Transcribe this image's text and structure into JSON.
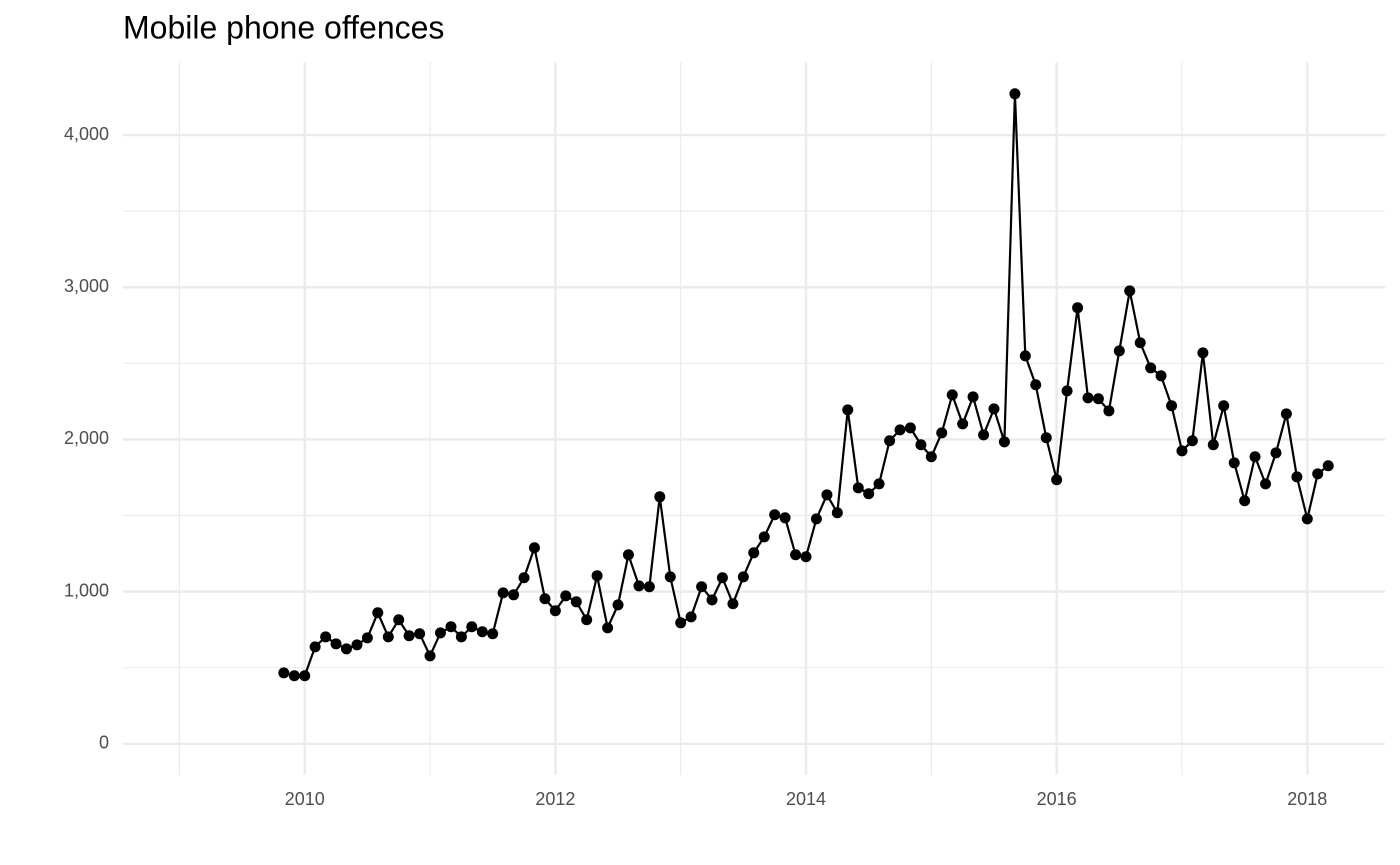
{
  "chart_data": {
    "type": "line",
    "title": "Mobile phone offences",
    "x": [
      2009.833,
      2009.917,
      2010,
      2010.083,
      2010.167,
      2010.25,
      2010.333,
      2010.417,
      2010.5,
      2010.583,
      2010.667,
      2010.75,
      2010.833,
      2010.917,
      2011,
      2011.083,
      2011.167,
      2011.25,
      2011.333,
      2011.417,
      2011.5,
      2011.583,
      2011.667,
      2011.75,
      2011.833,
      2011.917,
      2012,
      2012.083,
      2012.167,
      2012.25,
      2012.333,
      2012.417,
      2012.5,
      2012.583,
      2012.667,
      2012.75,
      2012.833,
      2012.917,
      2013,
      2013.083,
      2013.167,
      2013.25,
      2013.333,
      2013.417,
      2013.5,
      2013.583,
      2013.667,
      2013.75,
      2013.833,
      2013.917,
      2014,
      2014.083,
      2014.167,
      2014.25,
      2014.333,
      2014.417,
      2014.5,
      2014.583,
      2014.667,
      2014.75,
      2014.833,
      2014.917,
      2015,
      2015.083,
      2015.167,
      2015.25,
      2015.333,
      2015.417,
      2015.5,
      2015.583,
      2015.667,
      2015.75,
      2015.833,
      2015.917,
      2016,
      2016.083,
      2016.167,
      2016.25,
      2016.333,
      2016.417,
      2016.5,
      2016.583,
      2016.667,
      2016.75,
      2016.833,
      2016.917,
      2017,
      2017.083,
      2017.167,
      2017.25,
      2017.333,
      2017.417,
      2017.5,
      2017.583,
      2017.667,
      2017.75,
      2017.833,
      2017.917,
      2018,
      2018.083,
      2018.167
    ],
    "values": [
      466,
      447,
      447,
      637,
      703,
      657,
      624,
      650,
      696,
      861,
      703,
      815,
      710,
      723,
      578,
      729,
      769,
      703,
      769,
      736,
      723,
      992,
      979,
      1091,
      1288,
      953,
      874,
      972,
      933,
      815,
      1104,
      762,
      913,
      1242,
      1038,
      1032,
      1623,
      1097,
      795,
      834,
      1032,
      946,
      1091,
      920,
      1097,
      1255,
      1360,
      1505,
      1485,
      1242,
      1229,
      1478,
      1636,
      1518,
      2194,
      1682,
      1643,
      1708,
      1991,
      2063,
      2076,
      1965,
      1886,
      2043,
      2293,
      2102,
      2280,
      2030,
      2201,
      1984,
      4271,
      2549,
      2359,
      2011,
      1735,
      2319,
      2865,
      2273,
      2267,
      2188,
      2582,
      2976,
      2635,
      2470,
      2418,
      2221,
      1925,
      1991,
      2569,
      1965,
      2221,
      1846,
      1597,
      1886,
      1708,
      1912,
      2168,
      1754,
      1478,
      1774,
      1827
    ],
    "color": "#000000",
    "xlim": [
      2008.55,
      2018.62
    ],
    "xticks": [
      2010,
      2012,
      2014,
      2016,
      2018
    ],
    "x_minor_ticks": [
      2009,
      2011,
      2013,
      2015,
      2017
    ],
    "ylim": [
      -205,
      4480
    ],
    "yticks": [
      0,
      {
        "value": 1000,
        "label": "1,000"
      },
      {
        "value": 2000,
        "label": "2,000"
      },
      {
        "value": 3000,
        "label": "3,000"
      },
      {
        "value": 4000,
        "label": "4,000"
      }
    ],
    "y_minor_ticks": [
      500,
      1500,
      2500,
      3500
    ],
    "grid": true
  }
}
